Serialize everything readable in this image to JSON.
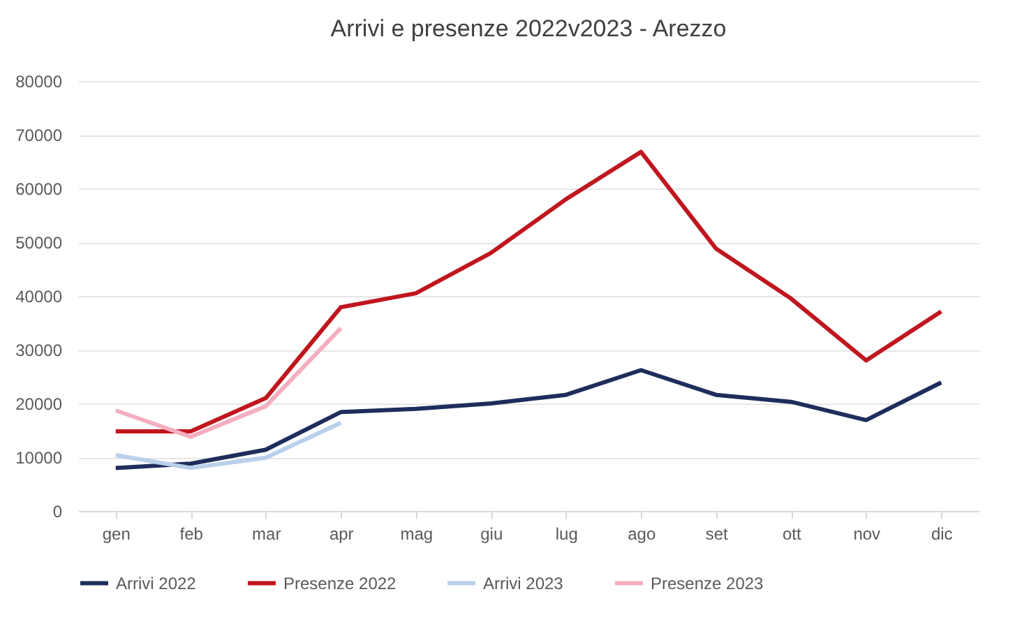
{
  "chart_data": {
    "type": "line",
    "title": "Arrivi e presenze 2022v2023 - Arezzo",
    "categories": [
      "gen",
      "feb",
      "mar",
      "apr",
      "mag",
      "giu",
      "lug",
      "ago",
      "set",
      "ott",
      "nov",
      "dic"
    ],
    "series": [
      {
        "name": "Arrivi 2022",
        "color": "#1f2d5c",
        "values": [
          8000,
          8800,
          11400,
          18400,
          19000,
          20000,
          21600,
          26200,
          21600,
          20300,
          16900,
          23900
        ]
      },
      {
        "name": "Presenze 2022",
        "color": "#c0161e",
        "values": [
          14800,
          14800,
          21000,
          37900,
          40500,
          48000,
          58000,
          66800,
          48800,
          39500,
          28000,
          37100
        ]
      },
      {
        "name": "Arrivi 2023",
        "color": "#b9d0ec",
        "values": [
          10400,
          8000,
          9900,
          16400,
          null,
          null,
          null,
          null,
          null,
          null,
          null,
          null
        ]
      },
      {
        "name": "Presenze 2023",
        "color": "#f4aebf",
        "values": [
          18700,
          13800,
          19500,
          34000,
          null,
          null,
          null,
          null,
          null,
          null,
          null,
          null
        ]
      }
    ],
    "ylim": [
      0,
      80000
    ],
    "yticks": [
      0,
      10000,
      20000,
      30000,
      40000,
      50000,
      60000,
      70000,
      80000
    ],
    "grid": "y",
    "legend": "bottom",
    "line_style": "solid",
    "marker": "none"
  }
}
